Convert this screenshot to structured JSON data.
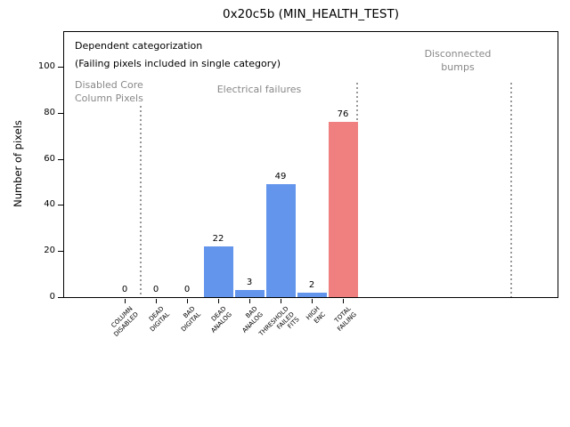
{
  "chart_data": {
    "type": "bar",
    "title": "0x20c5b (MIN_HEALTH_TEST)",
    "ylabel": "Number of pixels",
    "xlabel": "",
    "ylim": [
      0,
      115
    ],
    "yticks": [
      0,
      20,
      40,
      60,
      80,
      100
    ],
    "grid": false,
    "legend": null,
    "categories": [
      "COLUMN\nDISABLED",
      "DEAD\nDIGITAL",
      "BAD\nDIGITAL",
      "DEAD\nANALOG",
      "BAD\nANALOG",
      "THRESHOLD\nFAILED\nFITS",
      "HIGH\nENC",
      "TOTAL\nFAILING"
    ],
    "values": [
      0,
      0,
      0,
      22,
      3,
      49,
      2,
      76
    ],
    "value_labels": [
      "0",
      "0",
      "0",
      "22",
      "3",
      "49",
      "2",
      "76"
    ],
    "bar_colors": [
      "#6495ED",
      "#6495ED",
      "#6495ED",
      "#6495ED",
      "#6495ED",
      "#6495ED",
      "#6495ED",
      "#F08080"
    ],
    "annotations": [
      {
        "text": "Dependent categorization",
        "color": "#000000"
      },
      {
        "text": "(Failing pixels included in single category)",
        "color": "#000000"
      }
    ],
    "region_labels": [
      {
        "text": "Disabled Core\nColumn Pixels",
        "color": "#888888",
        "align": "left"
      },
      {
        "text": "Electrical failures",
        "color": "#888888",
        "align": "center"
      },
      {
        "text": "Disconnected\nbumps",
        "color": "#888888",
        "align": "center"
      }
    ],
    "separators": [
      {
        "x": 0.5,
        "y_top": 83
      },
      {
        "x": 7.45,
        "y_top": 93
      },
      {
        "x": 12.4,
        "y_top": 93
      }
    ],
    "colors": {
      "bar_blue": "#6495ED",
      "bar_red": "#F08080",
      "muted_text": "#888888",
      "separator": "#999999",
      "axis": "#000000"
    }
  }
}
